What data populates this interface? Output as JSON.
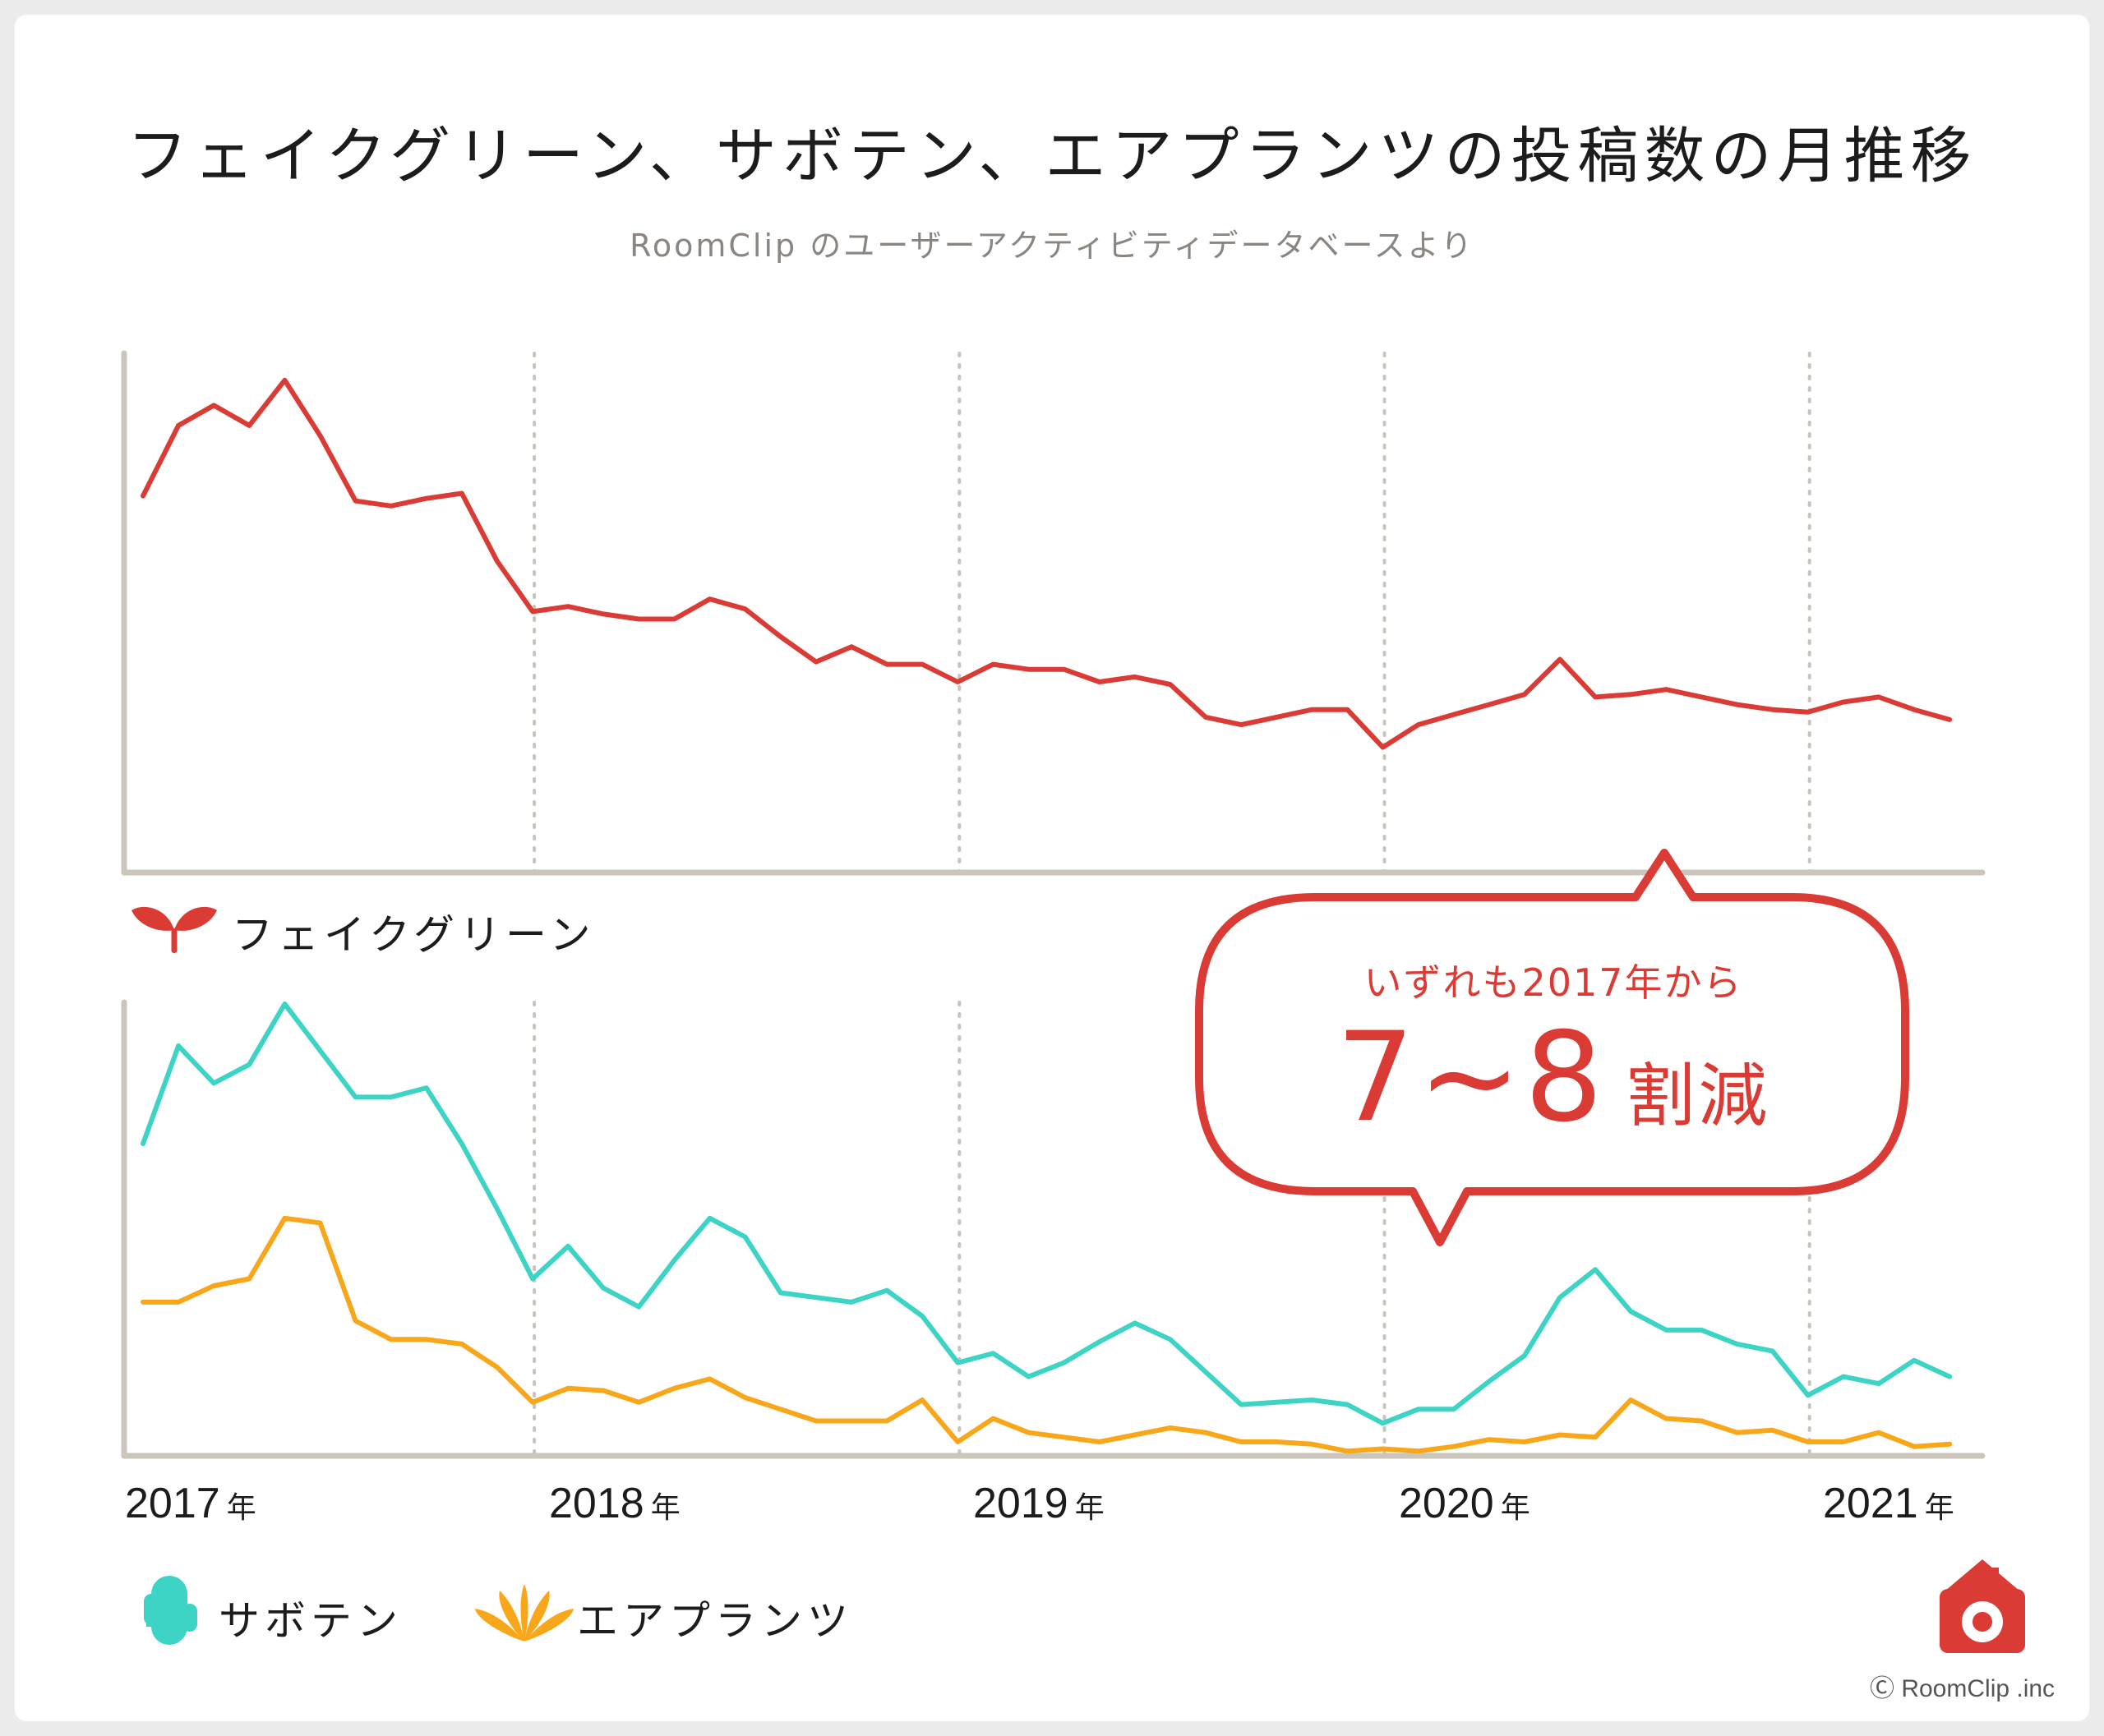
{
  "title": "フェイクグリーン、サボテン、エアプランツの投稿数の月推移",
  "subtitle": "RoomClip のユーザーアクティビティデータベースより",
  "colors": {
    "fake_green": "#db3b35",
    "cactus": "#3dd4c6",
    "air_plants": "#f8a71b",
    "axis": "#cbc5bb",
    "gridline": "#c9c4bb"
  },
  "legend": {
    "fake_green": "フェイクグリーン",
    "cactus": "サボテン",
    "air_plants": "エアプランツ"
  },
  "icons": {
    "fake_green": "sprout-icon",
    "cactus": "cactus-icon",
    "air_plants": "air-plant-icon",
    "logo": "roomclip-house-camera-icon"
  },
  "years": [
    {
      "year": "2017",
      "suffix": "年"
    },
    {
      "year": "2018",
      "suffix": "年"
    },
    {
      "year": "2019",
      "suffix": "年"
    },
    {
      "year": "2020",
      "suffix": "年"
    },
    {
      "year": "2021",
      "suffix": "年"
    }
  ],
  "callout": {
    "line1": "いずれも2017年から",
    "big": "7~8",
    "suffix": "割減"
  },
  "copyright": "Ⓒ RoomClip .inc",
  "chart_data": [
    {
      "type": "line",
      "x_start": "2017-01",
      "x_interval": "month",
      "x_ticks": [
        "2017",
        "2018",
        "2019",
        "2020",
        "2021"
      ],
      "ylim": [
        0,
        100
      ],
      "grid": "vertical dotted at each year",
      "series": [
        {
          "name": "フェイクグリーン",
          "color": "#db3b35",
          "values": [
            70,
            84,
            88,
            84,
            93,
            82,
            69,
            68,
            69.5,
            70.5,
            57,
            47,
            48,
            46.5,
            45.5,
            45.5,
            49.5,
            47.5,
            42,
            37,
            40,
            36.5,
            36.5,
            33,
            36.5,
            35.5,
            35.5,
            33,
            34,
            32.5,
            26,
            24.5,
            26,
            27.5,
            27.5,
            20,
            24.5,
            26.5,
            28.5,
            30.5,
            37.5,
            30,
            30.5,
            31.5,
            30,
            28.5,
            27.5,
            27,
            29,
            30,
            27.5,
            25.5
          ]
        }
      ]
    },
    {
      "type": "line",
      "x_start": "2017-01",
      "x_interval": "month",
      "x_ticks": [
        "2017",
        "2018",
        "2019",
        "2020",
        "2021"
      ],
      "ylim": [
        0,
        100
      ],
      "grid": "vertical dotted at each year",
      "series": [
        {
          "name": "サボテン",
          "color": "#3dd4c6",
          "values": [
            67,
            88,
            80,
            84,
            97,
            87,
            77,
            77,
            79,
            67,
            53,
            38,
            45,
            36,
            32,
            42,
            51,
            47,
            35,
            34,
            33,
            35.5,
            30,
            20,
            22,
            17,
            20,
            24.5,
            28.5,
            25,
            18,
            11,
            11.5,
            12,
            11,
            7,
            10,
            10,
            16,
            21.5,
            34,
            40,
            31,
            27,
            27,
            24,
            22.5,
            13,
            17,
            15.5,
            20.5,
            17
          ]
        },
        {
          "name": "エアプランツ",
          "color": "#f8a71b",
          "values": [
            33,
            33,
            36.5,
            38,
            51,
            50,
            29,
            25,
            25,
            24,
            19,
            11.5,
            14.5,
            14,
            11.5,
            14.5,
            16.5,
            12.5,
            10,
            7.5,
            7.5,
            7.5,
            12,
            3,
            8,
            5,
            4,
            3,
            4.5,
            6,
            5,
            3,
            3,
            2.5,
            1,
            1.5,
            1,
            2,
            3.5,
            3,
            4.5,
            4,
            12,
            8,
            7.5,
            5,
            5.5,
            3,
            3,
            5,
            2,
            2.5
          ]
        }
      ]
    }
  ]
}
